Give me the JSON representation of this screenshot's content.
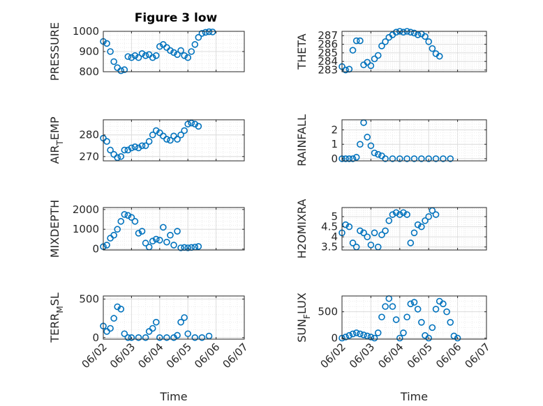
{
  "figure": {
    "title": "Figure 3 low",
    "xlabel": "Time"
  },
  "style": {
    "marker_color": "#0072BD",
    "grid_color": "#d9d9d9",
    "axis_color": "#262626"
  },
  "chart_data": [
    {
      "id": "pressure",
      "type": "scatter",
      "title": "Figure 3 low",
      "ylabel": "PRESSURE",
      "xlim": [
        "06/02",
        "06/07"
      ],
      "ylim": [
        800,
        1000
      ],
      "yticks": [
        800,
        900,
        1000
      ],
      "xticks": [
        "06/02",
        "06/03",
        "06/04",
        "06/05",
        "06/06",
        "06/07"
      ],
      "xticklabels_shown": false,
      "grid": true,
      "points": [
        [
          "06/02 00:00",
          950
        ],
        [
          "06/02 03:00",
          940
        ],
        [
          "06/02 06:00",
          900
        ],
        [
          "06/02 09:00",
          850
        ],
        [
          "06/02 12:00",
          820
        ],
        [
          "06/02 15:00",
          805
        ],
        [
          "06/02 18:00",
          810
        ],
        [
          "06/02 21:00",
          875
        ],
        [
          "06/03 00:00",
          870
        ],
        [
          "06/03 03:00",
          880
        ],
        [
          "06/03 06:00",
          870
        ],
        [
          "06/03 09:00",
          890
        ],
        [
          "06/03 12:00",
          880
        ],
        [
          "06/03 15:00",
          885
        ],
        [
          "06/03 18:00",
          870
        ],
        [
          "06/03 21:00",
          880
        ],
        [
          "06/04 00:00",
          925
        ],
        [
          "06/04 03:00",
          935
        ],
        [
          "06/04 06:00",
          920
        ],
        [
          "06/04 09:00",
          905
        ],
        [
          "06/04 12:00",
          895
        ],
        [
          "06/04 15:00",
          885
        ],
        [
          "06/04 18:00",
          905
        ],
        [
          "06/04 21:00",
          880
        ],
        [
          "06/05 00:00",
          870
        ],
        [
          "06/05 03:00",
          900
        ],
        [
          "06/05 06:00",
          935
        ],
        [
          "06/05 09:00",
          970
        ],
        [
          "06/05 12:00",
          990
        ],
        [
          "06/05 15:00",
          995
        ],
        [
          "06/05 18:00",
          998
        ],
        [
          "06/05 21:00",
          997
        ]
      ]
    },
    {
      "id": "theta",
      "type": "scatter",
      "ylabel": "THETA",
      "xlim": [
        "06/02",
        "06/07"
      ],
      "ylim": [
        282.8,
        287.5
      ],
      "yticks": [
        283,
        284,
        285,
        286,
        287
      ],
      "xticks": [
        "06/02",
        "06/03",
        "06/04",
        "06/05",
        "06/06",
        "06/07"
      ],
      "xticklabels_shown": false,
      "grid": true,
      "points": [
        [
          "06/02 00:00",
          283.4
        ],
        [
          "06/02 03:00",
          283.0
        ],
        [
          "06/02 06:00",
          283.1
        ],
        [
          "06/02 09:00",
          285.3
        ],
        [
          "06/02 12:00",
          286.4
        ],
        [
          "06/02 15:00",
          286.4
        ],
        [
          "06/02 18:00",
          283.6
        ],
        [
          "06/02 21:00",
          283.9
        ],
        [
          "06/03 00:00",
          283.5
        ],
        [
          "06/03 03:00",
          284.3
        ],
        [
          "06/03 06:00",
          284.7
        ],
        [
          "06/03 09:00",
          285.8
        ],
        [
          "06/03 12:00",
          286.3
        ],
        [
          "06/03 15:00",
          286.8
        ],
        [
          "06/03 18:00",
          287.1
        ],
        [
          "06/03 21:00",
          287.4
        ],
        [
          "06/04 00:00",
          287.5
        ],
        [
          "06/04 03:00",
          287.4
        ],
        [
          "06/04 06:00",
          287.5
        ],
        [
          "06/04 09:00",
          287.4
        ],
        [
          "06/04 12:00",
          287.3
        ],
        [
          "06/04 15:00",
          287.1
        ],
        [
          "06/04 18:00",
          287.2
        ],
        [
          "06/04 21:00",
          286.9
        ],
        [
          "06/05 00:00",
          286.3
        ],
        [
          "06/05 03:00",
          285.5
        ],
        [
          "06/05 06:00",
          284.9
        ],
        [
          "06/05 09:00",
          284.6
        ]
      ]
    },
    {
      "id": "air_temp",
      "type": "scatter",
      "ylabel": "AIR_TEMP",
      "ylabel_display": [
        "AIR",
        "T",
        "EMP"
      ],
      "xlim": [
        "06/02",
        "06/07"
      ],
      "ylim": [
        268,
        287
      ],
      "yticks": [
        270,
        280
      ],
      "xticks": [
        "06/02",
        "06/03",
        "06/04",
        "06/05",
        "06/06",
        "06/07"
      ],
      "xticklabels_shown": false,
      "grid": true,
      "points": [
        [
          "06/02 00:00",
          278.5
        ],
        [
          "06/02 03:00",
          277
        ],
        [
          "06/02 06:00",
          273
        ],
        [
          "06/02 09:00",
          271
        ],
        [
          "06/02 12:00",
          269.5
        ],
        [
          "06/02 15:00",
          270
        ],
        [
          "06/02 18:00",
          273
        ],
        [
          "06/02 21:00",
          273
        ],
        [
          "06/03 00:00",
          274
        ],
        [
          "06/03 03:00",
          274.5
        ],
        [
          "06/03 06:00",
          274
        ],
        [
          "06/03 09:00",
          275
        ],
        [
          "06/03 12:00",
          275
        ],
        [
          "06/03 15:00",
          277
        ],
        [
          "06/03 18:00",
          280
        ],
        [
          "06/03 21:00",
          282
        ],
        [
          "06/04 00:00",
          281
        ],
        [
          "06/04 03:00",
          279.5
        ],
        [
          "06/04 06:00",
          278
        ],
        [
          "06/04 09:00",
          277.5
        ],
        [
          "06/04 12:00",
          279.5
        ],
        [
          "06/04 15:00",
          278
        ],
        [
          "06/04 18:00",
          280
        ],
        [
          "06/04 21:00",
          282
        ],
        [
          "06/05 00:00",
          285
        ],
        [
          "06/05 03:00",
          285.5
        ],
        [
          "06/05 06:00",
          285
        ],
        [
          "06/05 09:00",
          284
        ]
      ]
    },
    {
      "id": "rainfall",
      "type": "scatter",
      "ylabel": "RAINFALL",
      "xlim": [
        "06/02",
        "06/07"
      ],
      "ylim": [
        -0.15,
        2.7
      ],
      "yticks": [
        0,
        1,
        2
      ],
      "xticks": [
        "06/02",
        "06/03",
        "06/04",
        "06/05",
        "06/06",
        "06/07"
      ],
      "xticklabels_shown": false,
      "grid": true,
      "points": [
        [
          "06/02 00:00",
          0
        ],
        [
          "06/02 03:00",
          0
        ],
        [
          "06/02 06:00",
          0
        ],
        [
          "06/02 09:00",
          0
        ],
        [
          "06/02 12:00",
          0.1
        ],
        [
          "06/02 15:00",
          1.0
        ],
        [
          "06/02 18:00",
          2.5
        ],
        [
          "06/02 21:00",
          1.5
        ],
        [
          "06/03 00:00",
          0.9
        ],
        [
          "06/03 03:00",
          0.4
        ],
        [
          "06/03 06:00",
          0.3
        ],
        [
          "06/03 09:00",
          0.2
        ],
        [
          "06/03 12:00",
          0
        ],
        [
          "06/03 18:00",
          0
        ],
        [
          "06/04 00:00",
          0
        ],
        [
          "06/04 06:00",
          0
        ],
        [
          "06/04 12:00",
          0
        ],
        [
          "06/04 18:00",
          0
        ],
        [
          "06/05 00:00",
          0
        ],
        [
          "06/05 06:00",
          0
        ],
        [
          "06/05 12:00",
          0
        ],
        [
          "06/05 18:00",
          0
        ]
      ]
    },
    {
      "id": "mixdepth",
      "type": "scatter",
      "ylabel": "MIXDEPTH",
      "xlim": [
        "06/02",
        "06/07"
      ],
      "ylim": [
        -50,
        2100
      ],
      "yticks": [
        0,
        1000,
        2000
      ],
      "xticks": [
        "06/02",
        "06/03",
        "06/04",
        "06/05",
        "06/06",
        "06/07"
      ],
      "xticklabels_shown": false,
      "grid": true,
      "points": [
        [
          "06/02 00:00",
          120
        ],
        [
          "06/02 03:00",
          200
        ],
        [
          "06/02 06:00",
          550
        ],
        [
          "06/02 09:00",
          700
        ],
        [
          "06/02 12:00",
          1000
        ],
        [
          "06/02 15:00",
          1400
        ],
        [
          "06/02 18:00",
          1750
        ],
        [
          "06/02 21:00",
          1700
        ],
        [
          "06/03 00:00",
          1600
        ],
        [
          "06/03 03:00",
          1400
        ],
        [
          "06/03 06:00",
          800
        ],
        [
          "06/03 09:00",
          900
        ],
        [
          "06/03 12:00",
          300
        ],
        [
          "06/03 15:00",
          100
        ],
        [
          "06/03 18:00",
          400
        ],
        [
          "06/03 21:00",
          500
        ],
        [
          "06/04 00:00",
          450
        ],
        [
          "06/04 03:00",
          1100
        ],
        [
          "06/04 06:00",
          350
        ],
        [
          "06/04 09:00",
          700
        ],
        [
          "06/04 12:00",
          200
        ],
        [
          "06/04 15:00",
          900
        ],
        [
          "06/04 18:00",
          60
        ],
        [
          "06/04 21:00",
          80
        ],
        [
          "06/05 00:00",
          60
        ],
        [
          "06/05 03:00",
          80
        ],
        [
          "06/05 06:00",
          100
        ],
        [
          "06/05 09:00",
          130
        ]
      ]
    },
    {
      "id": "h2omixra",
      "type": "scatter",
      "ylabel": "H2OMIXRA",
      "xlim": [
        "06/02",
        "06/07"
      ],
      "ylim": [
        3.35,
        5.45
      ],
      "yticks": [
        3.5,
        4,
        4.5,
        5
      ],
      "xticks": [
        "06/02",
        "06/03",
        "06/04",
        "06/05",
        "06/06",
        "06/07"
      ],
      "xticklabels_shown": false,
      "grid": true,
      "points": [
        [
          "06/02 00:00",
          4.2
        ],
        [
          "06/02 03:00",
          4.6
        ],
        [
          "06/02 06:00",
          4.5
        ],
        [
          "06/02 09:00",
          3.7
        ],
        [
          "06/02 12:00",
          3.5
        ],
        [
          "06/02 15:00",
          4.3
        ],
        [
          "06/02 18:00",
          4.2
        ],
        [
          "06/02 21:00",
          4.0
        ],
        [
          "06/03 00:00",
          3.6
        ],
        [
          "06/03 03:00",
          4.2
        ],
        [
          "06/03 06:00",
          3.5
        ],
        [
          "06/03 09:00",
          4.1
        ],
        [
          "06/03 12:00",
          4.3
        ],
        [
          "06/03 15:00",
          4.8
        ],
        [
          "06/03 18:00",
          5.1
        ],
        [
          "06/03 21:00",
          5.2
        ],
        [
          "06/04 00:00",
          5.1
        ],
        [
          "06/04 03:00",
          5.2
        ],
        [
          "06/04 06:00",
          5.1
        ],
        [
          "06/04 09:00",
          3.7
        ],
        [
          "06/04 12:00",
          4.2
        ],
        [
          "06/04 15:00",
          4.6
        ],
        [
          "06/04 18:00",
          4.5
        ],
        [
          "06/04 21:00",
          4.8
        ],
        [
          "06/05 00:00",
          5.0
        ],
        [
          "06/05 03:00",
          5.3
        ],
        [
          "06/05 06:00",
          5.1
        ]
      ]
    },
    {
      "id": "terr_msl",
      "type": "scatter",
      "ylabel": "TERR_MSL",
      "ylabel_display": [
        "TERR",
        "M",
        "SL"
      ],
      "xlim": [
        "06/02",
        "06/07"
      ],
      "ylim": [
        -20,
        540
      ],
      "yticks": [
        0,
        500
      ],
      "xticks": [
        "06/02",
        "06/03",
        "06/04",
        "06/05",
        "06/06",
        "06/07"
      ],
      "xticklabels_shown": true,
      "xlabel": "Time",
      "grid": true,
      "points": [
        [
          "06/02 00:00",
          150
        ],
        [
          "06/02 03:00",
          80
        ],
        [
          "06/02 06:00",
          120
        ],
        [
          "06/02 09:00",
          250
        ],
        [
          "06/02 12:00",
          400
        ],
        [
          "06/02 15:00",
          370
        ],
        [
          "06/02 18:00",
          50
        ],
        [
          "06/02 21:00",
          0
        ],
        [
          "06/03 00:00",
          0
        ],
        [
          "06/03 06:00",
          0
        ],
        [
          "06/03 12:00",
          0
        ],
        [
          "06/03 15:00",
          80
        ],
        [
          "06/03 18:00",
          120
        ],
        [
          "06/03 21:00",
          200
        ],
        [
          "06/04 00:00",
          0
        ],
        [
          "06/04 06:00",
          0
        ],
        [
          "06/04 12:00",
          0
        ],
        [
          "06/04 15:00",
          30
        ],
        [
          "06/04 18:00",
          200
        ],
        [
          "06/04 21:00",
          260
        ],
        [
          "06/05 00:00",
          50
        ],
        [
          "06/05 06:00",
          0
        ],
        [
          "06/05 12:00",
          0
        ],
        [
          "06/05 18:00",
          20
        ]
      ]
    },
    {
      "id": "sun_flux",
      "type": "scatter",
      "ylabel": "SUN_FLUX",
      "ylabel_display": [
        "SUN",
        "F",
        "LUX"
      ],
      "xlim": [
        "06/02",
        "06/07"
      ],
      "ylim": [
        -20,
        800
      ],
      "yticks": [
        0,
        500
      ],
      "xticks": [
        "06/02",
        "06/03",
        "06/04",
        "06/05",
        "06/06",
        "06/07"
      ],
      "xticklabels_shown": true,
      "xlabel": "Time",
      "grid": true,
      "points": [
        [
          "06/02 00:00",
          0
        ],
        [
          "06/02 03:00",
          20
        ],
        [
          "06/02 06:00",
          50
        ],
        [
          "06/02 09:00",
          80
        ],
        [
          "06/02 12:00",
          100
        ],
        [
          "06/02 15:00",
          80
        ],
        [
          "06/02 18:00",
          60
        ],
        [
          "06/02 21:00",
          40
        ],
        [
          "06/03 00:00",
          20
        ],
        [
          "06/03 03:00",
          0
        ],
        [
          "06/03 06:00",
          100
        ],
        [
          "06/03 09:00",
          400
        ],
        [
          "06/03 12:00",
          600
        ],
        [
          "06/03 15:00",
          750
        ],
        [
          "06/03 18:00",
          600
        ],
        [
          "06/03 21:00",
          350
        ],
        [
          "06/04 00:00",
          0
        ],
        [
          "06/04 03:00",
          100
        ],
        [
          "06/04 06:00",
          400
        ],
        [
          "06/04 09:00",
          650
        ],
        [
          "06/04 12:00",
          680
        ],
        [
          "06/04 15:00",
          550
        ],
        [
          "06/04 18:00",
          300
        ],
        [
          "06/04 21:00",
          50
        ],
        [
          "06/05 00:00",
          0
        ],
        [
          "06/05 03:00",
          200
        ],
        [
          "06/05 06:00",
          550
        ],
        [
          "06/05 09:00",
          700
        ],
        [
          "06/05 12:00",
          650
        ],
        [
          "06/05 15:00",
          500
        ],
        [
          "06/05 18:00",
          300
        ],
        [
          "06/05 21:00",
          40
        ],
        [
          "06/06 00:00",
          0
        ]
      ]
    }
  ]
}
